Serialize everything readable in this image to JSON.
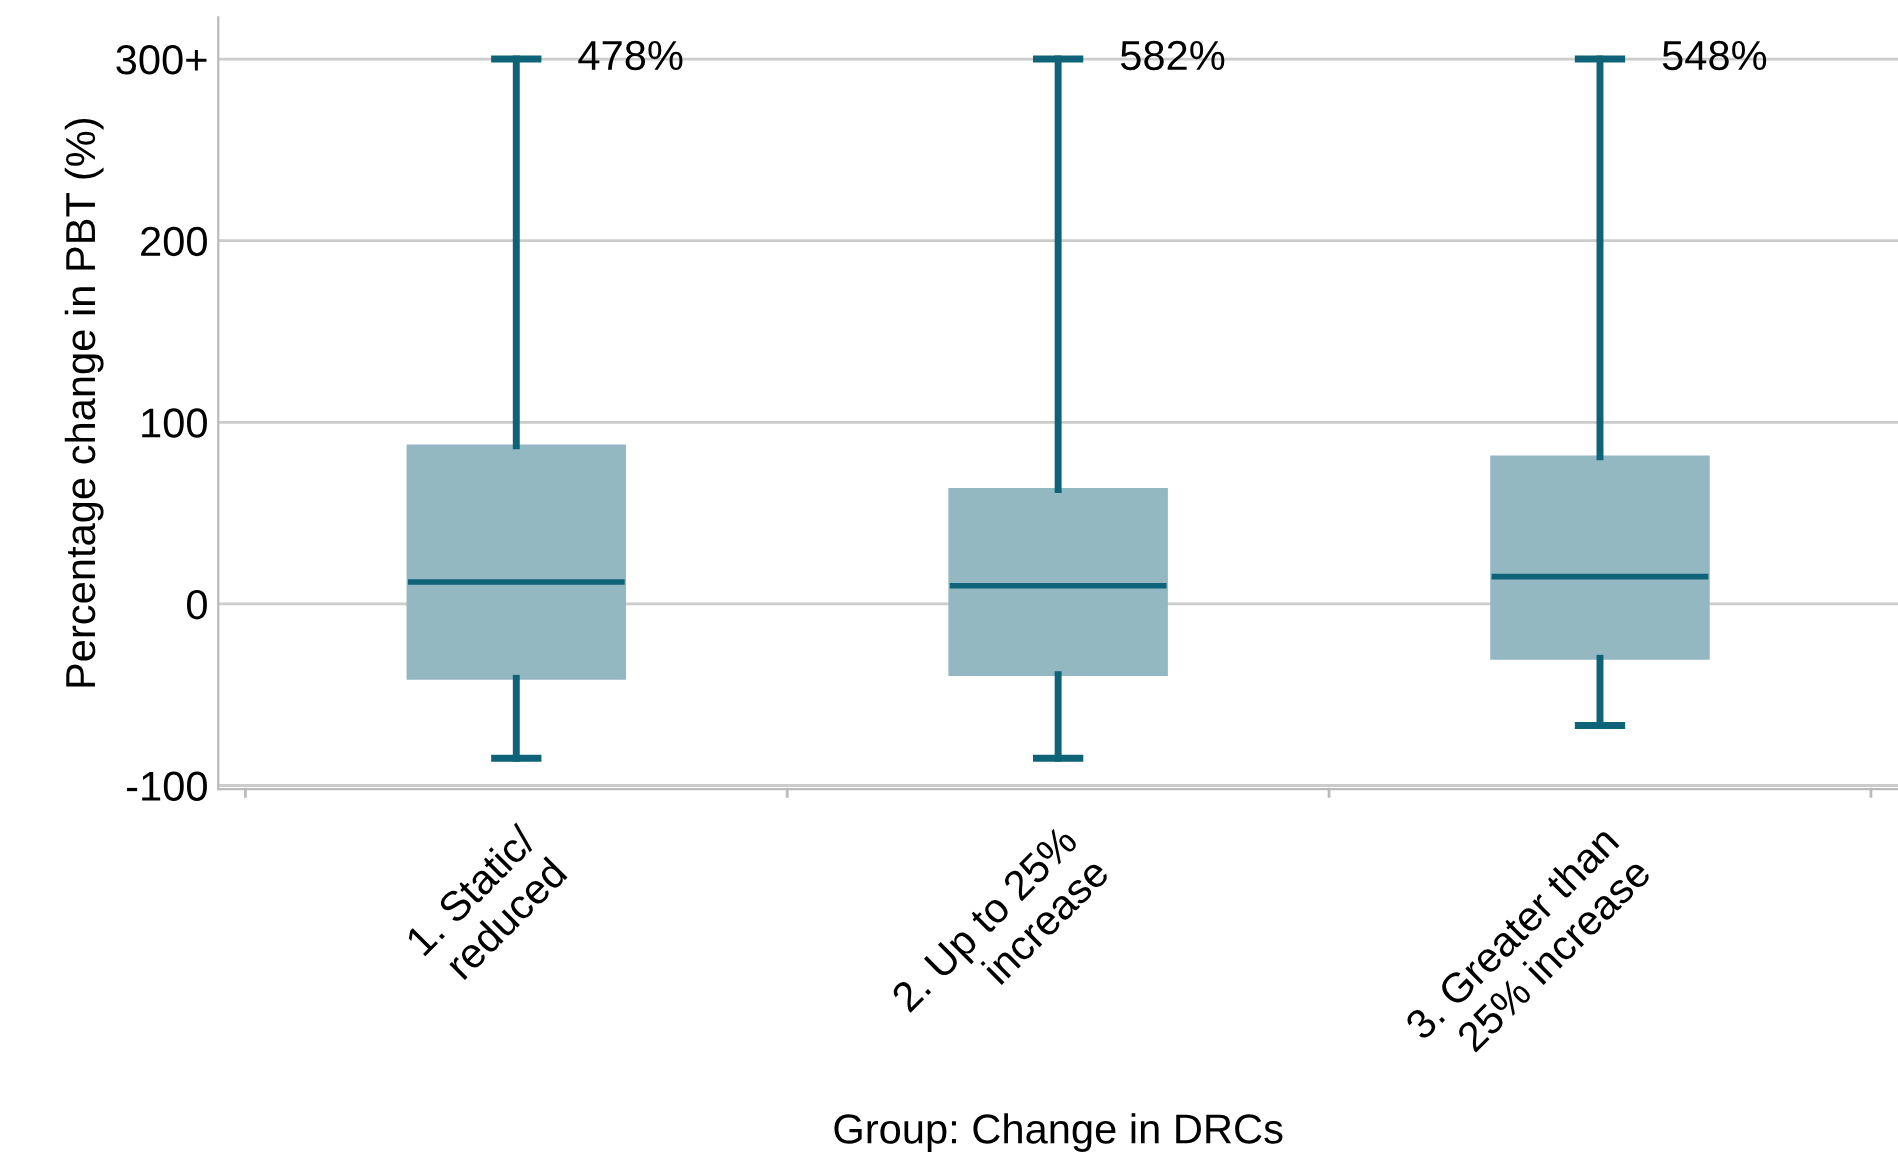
{
  "chart_data": {
    "type": "box",
    "xlabel": "Group: Change in DRCs",
    "ylabel": "Percentage change in PBT (%)",
    "categories": [
      "1. Static/\nreduced",
      "2. Up to 25%\nincrease",
      "3. Greater than\n25% increase"
    ],
    "boxes": [
      {
        "low": -85,
        "q1": -41,
        "median": 12,
        "q3": 87,
        "high": 300
      },
      {
        "low": -85,
        "q1": -39,
        "median": 10,
        "q3": 63,
        "high": 300
      },
      {
        "low": -67,
        "q1": -30,
        "median": 15,
        "q3": 81,
        "high": 300
      }
    ],
    "color": "#93b8c2",
    "annotations": [
      "478%",
      "582%",
      "548%"
    ],
    "ylim": [
      -102,
      323
    ],
    "yticks": [
      -100,
      0,
      100,
      200,
      {
        "value": 300,
        "label": "300+"
      }
    ],
    "grid": "y",
    "legend": false
  }
}
